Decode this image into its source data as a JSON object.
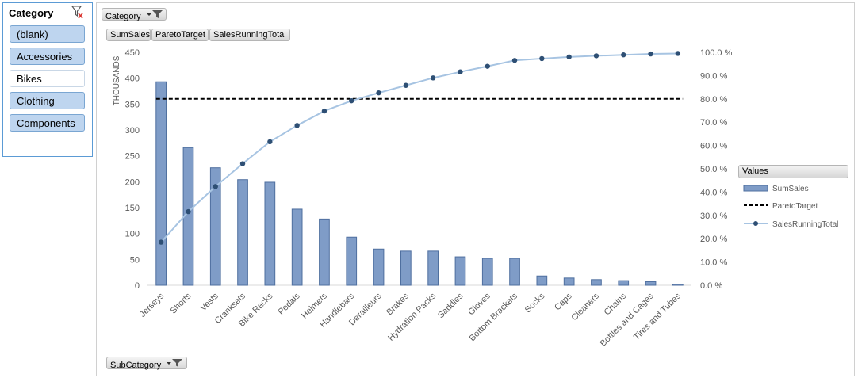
{
  "slicer": {
    "title": "Category",
    "items": [
      {
        "label": "(blank)",
        "selected": true
      },
      {
        "label": "Accessories",
        "selected": true
      },
      {
        "label": "Bikes",
        "selected": false
      },
      {
        "label": "Clothing",
        "selected": true
      },
      {
        "label": "Components",
        "selected": true
      }
    ]
  },
  "field_buttons": {
    "report_filter": "Category",
    "values": [
      "SumSales",
      "ParetoTarget",
      "SalesRunningTotal"
    ],
    "axis": "SubCategory"
  },
  "legend": {
    "title": "Values",
    "entries": [
      "SumSales",
      "ParetoTarget",
      "SalesRunningTotal"
    ]
  },
  "colors": {
    "bar_fill": "#7f9cc7",
    "bar_stroke": "#4f6f9f",
    "line": "#a7c4e2",
    "marker": "#2e4f74",
    "target": "#000000",
    "slicer_selected": "#bed5ef"
  },
  "chart_data": {
    "type": "bar",
    "categories": [
      "Jerseys",
      "Shorts",
      "Vests",
      "Cranksets",
      "Bike Racks",
      "Pedals",
      "Helmets",
      "Handlebars",
      "Derailleurs",
      "Brakes",
      "Hydration Packs",
      "Saddles",
      "Gloves",
      "Bottom Brackets",
      "Socks",
      "Caps",
      "Cleaners",
      "Chains",
      "Bottles and Cages",
      "Tires and Tubes"
    ],
    "ylabel": "THOUSANDS",
    "ylim": [
      0,
      450
    ],
    "yticks": [
      "0",
      "50",
      "100",
      "150",
      "200",
      "250",
      "300",
      "350",
      "400",
      "450"
    ],
    "y2lim": [
      0,
      1
    ],
    "y2ticks": [
      "0.0 %",
      "10.0 %",
      "20.0 %",
      "30.0 %",
      "40.0 %",
      "50.0 %",
      "60.0 %",
      "70.0 %",
      "80.0 %",
      "90.0 %",
      "100.0 %"
    ],
    "legend_position": "right",
    "series": [
      {
        "name": "SumSales",
        "type": "bar",
        "axis": "primary",
        "values": [
          393,
          266,
          227,
          204,
          199,
          147,
          128,
          93,
          70,
          66,
          66,
          55,
          52,
          52,
          18,
          14,
          11,
          9,
          7,
          2
        ]
      },
      {
        "name": "ParetoTarget",
        "type": "line",
        "axis": "secondary",
        "style": "dashed",
        "values": [
          0.8,
          0.8,
          0.8,
          0.8,
          0.8,
          0.8,
          0.8,
          0.8,
          0.8,
          0.8,
          0.8,
          0.8,
          0.8,
          0.8,
          0.8,
          0.8,
          0.8,
          0.8,
          0.8,
          0.8
        ]
      },
      {
        "name": "SalesRunningTotal",
        "type": "line",
        "axis": "secondary",
        "markers": true,
        "values": [
          0.185,
          0.316,
          0.424,
          0.522,
          0.616,
          0.686,
          0.748,
          0.792,
          0.826,
          0.858,
          0.89,
          0.916,
          0.94,
          0.965,
          0.973,
          0.98,
          0.985,
          0.989,
          0.993,
          0.995
        ]
      }
    ]
  }
}
